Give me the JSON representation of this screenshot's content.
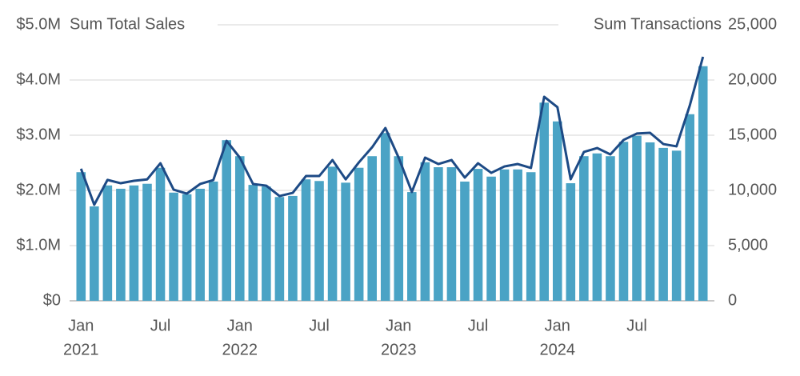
{
  "chart_data": {
    "type": "bar-line",
    "y_title": "Sum Total Sales",
    "y2_title": "Sum Transactions",
    "categories": [
      [
        "Jan",
        "2021"
      ],
      null,
      null,
      null,
      null,
      null,
      [
        "Jul"
      ],
      null,
      null,
      null,
      null,
      null,
      [
        "Jan",
        "2022"
      ],
      null,
      null,
      null,
      null,
      null,
      [
        "Jul"
      ],
      null,
      null,
      null,
      null,
      null,
      [
        "Jan",
        "2023"
      ],
      null,
      null,
      null,
      null,
      null,
      [
        "Jul"
      ],
      null,
      null,
      null,
      null,
      null,
      [
        "Jan",
        "2024"
      ],
      null,
      null,
      null,
      null,
      null,
      [
        "Jul"
      ],
      null,
      null,
      null,
      null,
      null
    ],
    "series": [
      {
        "name": "Sum Total Sales",
        "kind": "bar",
        "color": "#4aa3c5",
        "axis": "y",
        "values": [
          2330000,
          1710000,
          2090000,
          2030000,
          2090000,
          2120000,
          2410000,
          1960000,
          1930000,
          2030000,
          2160000,
          2910000,
          2620000,
          2100000,
          2070000,
          1880000,
          1900000,
          2200000,
          2170000,
          2430000,
          2140000,
          2410000,
          2620000,
          3040000,
          2620000,
          1970000,
          2510000,
          2420000,
          2420000,
          2160000,
          2390000,
          2250000,
          2380000,
          2380000,
          2330000,
          3590000,
          3250000,
          2130000,
          2620000,
          2670000,
          2620000,
          2880000,
          2990000,
          2870000,
          2770000,
          2720000,
          3380000,
          4250000
        ]
      },
      {
        "name": "Sum Transactions",
        "kind": "line",
        "color": "#1d4a85",
        "axis": "y2",
        "values": [
          11960,
          8700,
          10950,
          10650,
          10870,
          11000,
          12460,
          10070,
          9710,
          10580,
          10940,
          14490,
          12970,
          10580,
          10430,
          9490,
          9780,
          11300,
          11300,
          12750,
          11000,
          12540,
          13910,
          15650,
          12970,
          9860,
          12970,
          12390,
          12750,
          11160,
          12460,
          11590,
          12170,
          12390,
          12030,
          18480,
          17540,
          11010,
          13480,
          13840,
          13260,
          14570,
          15150,
          15220,
          14200,
          13990,
          17680,
          22100
        ]
      }
    ],
    "ylim": [
      0,
      5000000
    ],
    "yticks": [
      {
        "value": 0,
        "label": "$0"
      },
      {
        "value": 1000000,
        "label": "$1.0M"
      },
      {
        "value": 2000000,
        "label": "$2.0M"
      },
      {
        "value": 3000000,
        "label": "$3.0M"
      },
      {
        "value": 4000000,
        "label": "$4.0M"
      },
      {
        "value": 5000000,
        "label": "$5.0M"
      }
    ],
    "y2lim": [
      0,
      25000
    ],
    "y2ticks": [
      0,
      {
        "value": 5000,
        "label": "5,000"
      },
      {
        "value": 10000,
        "label": "10,000"
      },
      {
        "value": 15000,
        "label": "15,000"
      },
      {
        "value": 20000,
        "label": "20,000"
      },
      {
        "value": 25000,
        "label": "25,000"
      }
    ],
    "grid": true
  }
}
